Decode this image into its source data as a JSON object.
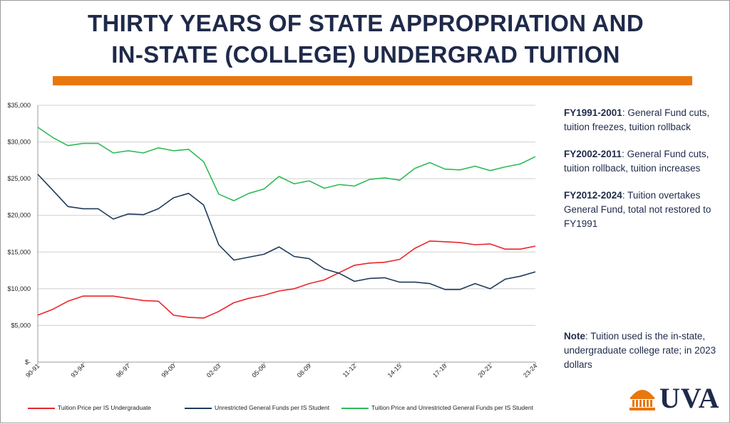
{
  "header": {
    "title_line1": "THIRTY YEARS OF STATE APPROPRIATION AND",
    "title_line2": "IN-STATE (COLLEGE) UNDERGRAD TUITION"
  },
  "colors": {
    "title": "#1f2a4a",
    "accent_rule": "#e8770e",
    "tuition": "#e8262b",
    "general_funds": "#1f3a5a",
    "combined": "#2ebb56"
  },
  "notes": [
    {
      "heading": "FY1991-2001",
      "text": ": General Fund cuts, tuition freezes, tuition rollback"
    },
    {
      "heading": "FY2002-2011",
      "text": ": General Fund cuts, tuition rollback, tuition increases"
    },
    {
      "heading": "FY2012-2024",
      "text": ": Tuition overtakes General Fund, total not restored to FY1991"
    }
  ],
  "note_final": {
    "heading": "Note",
    "text": ":  Tuition used is the in-state, undergraduate college rate; in 2023 dollars"
  },
  "logo": {
    "text": "UVA"
  },
  "chart_data": {
    "type": "line",
    "x": [
      "90-91",
      "91-92",
      "92-93",
      "93-94",
      "94-95",
      "95-96",
      "96-97",
      "97-98",
      "98-99",
      "99-00",
      "00-01",
      "01-02",
      "02-03",
      "03-04",
      "04-05",
      "05-06",
      "06-07",
      "07-08",
      "08-09",
      "09-10",
      "10-11",
      "11-12",
      "12-13",
      "13-14",
      "14-15",
      "15-16",
      "16-17",
      "17-18",
      "18-19",
      "19-20",
      "20-21",
      "21-22",
      "22-23",
      "23-24"
    ],
    "tick_labels": [
      "90-91",
      "93-94",
      "96-97",
      "99-00",
      "02-03",
      "05-06",
      "08-09",
      "11-12",
      "14-15",
      "17-18",
      "20-21",
      "23-24"
    ],
    "y_tick_labels": [
      "$-",
      "$5,000",
      "$10,000",
      "$15,000",
      "$20,000",
      "$25,000",
      "$30,000",
      "$35,000"
    ],
    "ylim": [
      0,
      35000
    ],
    "grid": true,
    "legend_position": "bottom",
    "series": [
      {
        "name": "Tuition Price per IS Undergraduate",
        "color": "#e8262b",
        "values": [
          6400,
          7200,
          8300,
          9000,
          9000,
          9000,
          8700,
          8400,
          8300,
          6400,
          6100,
          6000,
          6900,
          8100,
          8700,
          9100,
          9700,
          10000,
          10700,
          11200,
          12200,
          13200,
          13500,
          13600,
          14000,
          15500,
          16500,
          16400,
          16300,
          16000,
          16100,
          15400,
          15400,
          15800
        ]
      },
      {
        "name": "Unrestricted General Funds per IS Student",
        "color": "#1f3a5a",
        "values": [
          25600,
          23400,
          21200,
          20900,
          20900,
          19500,
          20200,
          20100,
          20900,
          22400,
          23000,
          21400,
          16000,
          13900,
          14300,
          14700,
          15700,
          14400,
          14100,
          12700,
          12100,
          11000,
          11400,
          11500,
          10900,
          10900,
          10700,
          9900,
          9900,
          10700,
          10000,
          11300,
          11700,
          12300
        ]
      },
      {
        "name": "Tuition Price and Unrestricted General Funds per IS Student",
        "color": "#2ebb56",
        "values": [
          32000,
          30600,
          29500,
          29800,
          29800,
          28500,
          28800,
          28500,
          29200,
          28800,
          29000,
          27300,
          22900,
          22000,
          23000,
          23600,
          25300,
          24300,
          24700,
          23700,
          24200,
          24000,
          24900,
          25100,
          24800,
          26400,
          27200,
          26300,
          26200,
          26700,
          26100,
          26600,
          27000,
          28000
        ]
      }
    ]
  }
}
